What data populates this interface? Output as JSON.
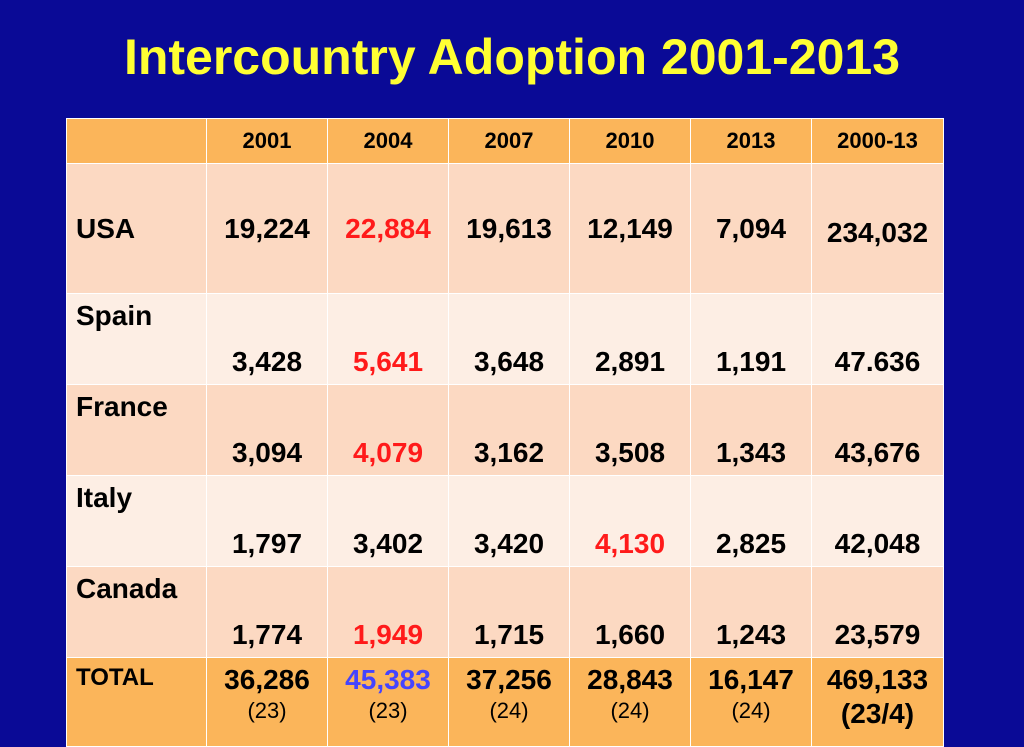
{
  "slide": {
    "title": "Intercountry Adoption 2001-2013"
  },
  "table": {
    "header": [
      "",
      "2001",
      "2004",
      "2007",
      "2010",
      "2013",
      "2000-13"
    ],
    "rows": [
      {
        "country": "USA",
        "values": [
          "19,224",
          "22,884",
          "19,613",
          "12,149",
          "7,094",
          "234,032"
        ],
        "highlight_index": 1
      },
      {
        "country": "Spain",
        "values": [
          "3,428",
          "5,641",
          "3,648",
          "2,891",
          "1,191",
          "47.636"
        ],
        "highlight_index": 1
      },
      {
        "country": "France",
        "values": [
          "3,094",
          "4,079",
          "3,162",
          "3,508",
          "1,343",
          "43,676"
        ],
        "highlight_index": 1
      },
      {
        "country": "Italy",
        "values": [
          "1,797",
          "3,402",
          "3,420",
          "4,130",
          "2,825",
          "42,048"
        ],
        "highlight_index": 3
      },
      {
        "country": "Canada",
        "values": [
          "1,774",
          "1,949",
          "1,715",
          "1,660",
          "1,243",
          "23,579"
        ],
        "highlight_index": 1
      }
    ],
    "total": {
      "label": "TOTAL",
      "values": [
        "36,286",
        "45,383",
        "37,256",
        "28,843",
        "16,147",
        "469,133"
      ],
      "notes": [
        "(23)",
        "(23)",
        "(24)",
        "(24)",
        "(24)",
        "(23/4)"
      ],
      "highlight_index": 1
    }
  },
  "colors": {
    "background": "#0a0a96",
    "title": "#ffff33",
    "header_cell": "#fbb55a",
    "row_dark": "#fcd9c2",
    "row_light": "#fdeee4",
    "highlight_red": "#ff1a1a",
    "highlight_blue": "#4444ff"
  }
}
